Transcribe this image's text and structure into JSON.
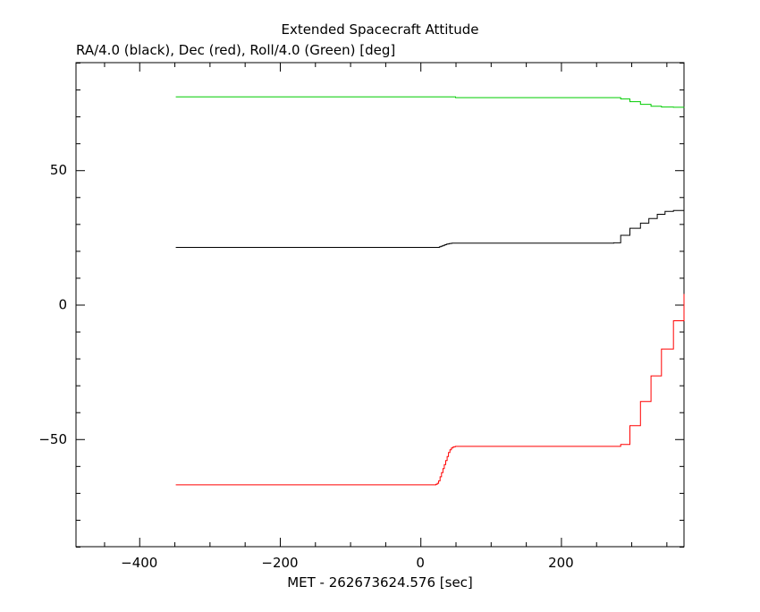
{
  "chart_data": {
    "type": "line",
    "title": "Extended Spacecraft Attitude",
    "subtitle": "RA/4.0 (black), Dec (red), Roll/4.0 (Green) [deg]",
    "xlabel": "MET - 262673624.576 [sec]",
    "ylabel": "",
    "xlim": [
      -490,
      375
    ],
    "ylim": [
      -90,
      90
    ],
    "x_ticks": [
      -400,
      -200,
      0,
      200
    ],
    "x_tick_labels": [
      "−400",
      "−200",
      "0",
      "200"
    ],
    "y_ticks": [
      -50,
      0,
      50
    ],
    "y_tick_labels": [
      "−50",
      "0",
      "50"
    ],
    "grid": false,
    "legend": "none",
    "series": [
      {
        "color": "#000000",
        "step": true,
        "x": [
          -348,
          25,
          27,
          29,
          31,
          33,
          35,
          37,
          39,
          41,
          43,
          45,
          47,
          50,
          269,
          275,
          285,
          298,
          313,
          325,
          337,
          348,
          360,
          375
        ],
        "y": [
          21.3,
          21.3,
          21.5,
          21.7,
          21.9,
          22.1,
          22.3,
          22.5,
          22.6,
          22.7,
          22.8,
          22.85,
          22.9,
          22.9,
          22.9,
          23.0,
          25.8,
          28.4,
          30.3,
          32.0,
          33.6,
          34.7,
          35.0,
          35.0
        ]
      },
      {
        "color": "#ff0000",
        "step": true,
        "x": [
          -348,
          19,
          22,
          24,
          26,
          28,
          30,
          32,
          34,
          36,
          38,
          40,
          42,
          44,
          46,
          48,
          50,
          269,
          285,
          298,
          313,
          328,
          343,
          360,
          375
        ],
        "y": [
          -67,
          -67,
          -66.8,
          -66.4,
          -65.5,
          -64.0,
          -62.5,
          -61.0,
          -59.5,
          -58.0,
          -56.5,
          -55.0,
          -54.0,
          -53.3,
          -53.0,
          -52.8,
          -52.7,
          -52.7,
          -52.0,
          -45.0,
          -36.0,
          -26.5,
          -16.5,
          -6.0,
          4.0
        ]
      },
      {
        "color": "#00cc00",
        "step": true,
        "x": [
          -348,
          28,
          50,
          269,
          285,
          298,
          313,
          328,
          343,
          360,
          375
        ],
        "y": [
          77.3,
          77.3,
          77.0,
          77.0,
          76.5,
          75.5,
          74.5,
          73.8,
          73.5,
          73.4,
          73.5
        ]
      }
    ]
  }
}
